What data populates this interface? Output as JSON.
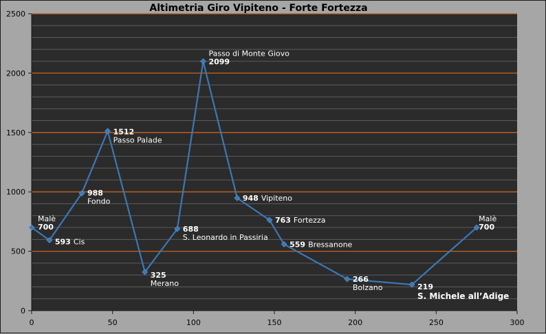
{
  "chart_data": {
    "type": "line",
    "title": "Altimetria Giro Vipiteno - Forte Fortezza",
    "xlabel": "",
    "ylabel": "",
    "xlim": [
      0,
      300
    ],
    "ylim": [
      0,
      2500
    ],
    "xticks": [
      "0",
      "50",
      "100",
      "150",
      "200",
      "250",
      "300"
    ],
    "yticks": [
      "0",
      "500",
      "1000",
      "1500",
      "2000",
      "2500"
    ],
    "grid": true,
    "colors": {
      "line": "#3c78b4",
      "plot_bg": "#2b2b2b",
      "grid_minor": "#5c5c5c",
      "grid_major": "#c8641e",
      "label": "#ffffff"
    },
    "series": [
      {
        "points": [
          {
            "x": 0,
            "y": 700,
            "name": "Malè",
            "value": "700"
          },
          {
            "x": 11,
            "y": 593,
            "name": "Cis",
            "value": "593"
          },
          {
            "x": 31,
            "y": 988,
            "name": "Fondo",
            "value": "988"
          },
          {
            "x": 47,
            "y": 1512,
            "name": "Passo Palade",
            "value": "1512"
          },
          {
            "x": 70,
            "y": 325,
            "name": "Merano",
            "value": "325"
          },
          {
            "x": 90,
            "y": 688,
            "name": "S. Leonardo in Passiria",
            "value": "688"
          },
          {
            "x": 106,
            "y": 2099,
            "name": "Passo di Monte Giovo",
            "value": "2099"
          },
          {
            "x": 127,
            "y": 948,
            "name": "Vipiteno",
            "value": "948"
          },
          {
            "x": 147,
            "y": 763,
            "name": "Fortezza",
            "value": "763"
          },
          {
            "x": 156,
            "y": 559,
            "name": "Bressanone",
            "value": "559"
          },
          {
            "x": 195,
            "y": 266,
            "name": "Bolzano",
            "value": "266"
          },
          {
            "x": 235,
            "y": 219,
            "name": "S. Michele all’Adige",
            "value": "219"
          },
          {
            "x": 275,
            "y": 700,
            "name": "Malè",
            "value": "700"
          }
        ]
      }
    ]
  }
}
